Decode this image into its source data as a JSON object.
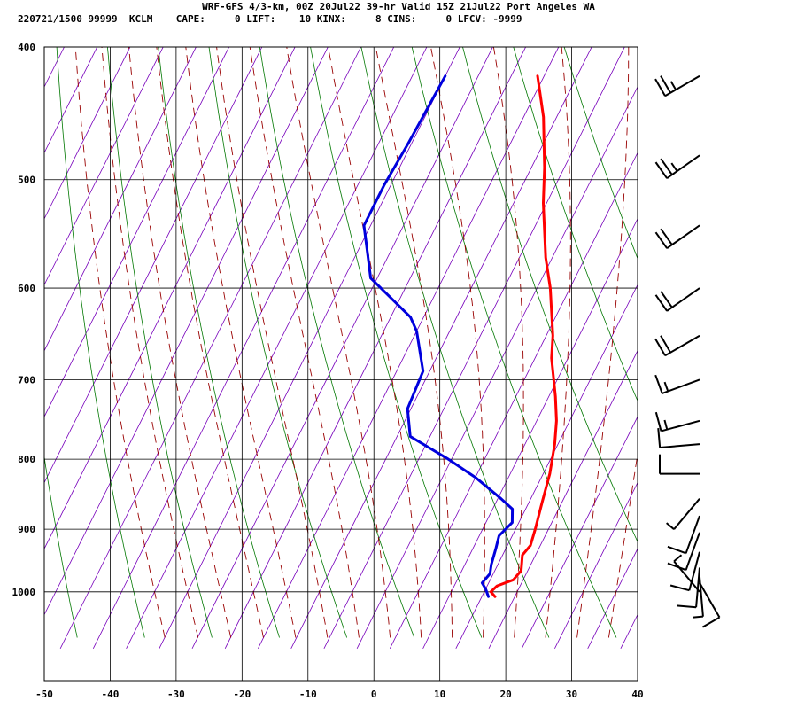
{
  "header": {
    "line1": "WRF-GFS 4/3-km, 00Z 20Jul22 39-hr Valid 15Z 21Jul22 Port Angeles WA",
    "line2": "220721/1500 99999  KCLM    CAPE:     0 LIFT:    10 KINX:     8 CINS:     0 LFCV: -9999"
  },
  "chart_data": {
    "type": "line",
    "title": "WRF-GFS 4/3-km, 00Z 20Jul22 39-hr Valid 15Z 21Jul22 Port Angeles WA",
    "xlabel": "",
    "ylabel": "",
    "x_ticks": [
      -50,
      -40,
      -30,
      -20,
      -10,
      0,
      10,
      20,
      30,
      40
    ],
    "y_ticks": [
      400,
      500,
      600,
      700,
      800,
      900,
      1000
    ],
    "xlim": [
      -50,
      40
    ],
    "ylim": [
      1040,
      400
    ],
    "y_scale": "log-pressure",
    "grid": true,
    "series": [
      {
        "role": "temperature",
        "color": "#ff0000",
        "points": [
          [
            12,
            1008
          ],
          [
            11,
            1000
          ],
          [
            11.5,
            990
          ],
          [
            13.5,
            980
          ],
          [
            14,
            965
          ],
          [
            13,
            940
          ],
          [
            13.5,
            925
          ],
          [
            13,
            900
          ],
          [
            12,
            860
          ],
          [
            11,
            820
          ],
          [
            9.5,
            780
          ],
          [
            8,
            750
          ],
          [
            6,
            720
          ],
          [
            2.5,
            675
          ],
          [
            1,
            650
          ],
          [
            -3,
            600
          ],
          [
            -6,
            570
          ],
          [
            -10.5,
            520
          ],
          [
            -13,
            490
          ],
          [
            -17,
            450
          ],
          [
            -21,
            420
          ]
        ]
      },
      {
        "role": "dewpoint",
        "color": "#0000dd",
        "points": [
          [
            11,
            1008
          ],
          [
            10,
            995
          ],
          [
            9,
            985
          ],
          [
            9.5,
            970
          ],
          [
            9,
            955
          ],
          [
            8.5,
            930
          ],
          [
            8,
            910
          ],
          [
            9,
            890
          ],
          [
            8,
            870
          ],
          [
            5.5,
            855
          ],
          [
            0,
            825
          ],
          [
            -5.5,
            800
          ],
          [
            -13,
            770
          ],
          [
            -15.5,
            735
          ],
          [
            -16,
            690
          ],
          [
            -20,
            645
          ],
          [
            -22,
            630
          ],
          [
            -31,
            590
          ],
          [
            -36,
            540
          ],
          [
            -36,
            505
          ],
          [
            -35.5,
            470
          ],
          [
            -35,
            420
          ]
        ]
      }
    ],
    "dry_adiabats_K": [
      220,
      230,
      240,
      250,
      260,
      270,
      280,
      290,
      300,
      310,
      320,
      330
    ],
    "moist_adiabats_C": [
      -40,
      -35,
      -30,
      -25,
      -20,
      -15,
      -10,
      -5,
      0,
      5,
      10,
      15,
      20,
      25,
      30
    ],
    "mixing_ratio_gkg": [
      0.4,
      1,
      2,
      3,
      5,
      8,
      12,
      16,
      20
    ],
    "wind_barbs": [
      {
        "p": 420,
        "dir": 240,
        "kt": 25
      },
      {
        "p": 480,
        "dir": 235,
        "kt": 25
      },
      {
        "p": 540,
        "dir": 235,
        "kt": 20
      },
      {
        "p": 600,
        "dir": 235,
        "kt": 20
      },
      {
        "p": 650,
        "dir": 240,
        "kt": 20
      },
      {
        "p": 700,
        "dir": 250,
        "kt": 15
      },
      {
        "p": 750,
        "dir": 255,
        "kt": 15
      },
      {
        "p": 780,
        "dir": 265,
        "kt": 10
      },
      {
        "p": 820,
        "dir": 270,
        "kt": 10
      },
      {
        "p": 855,
        "dir": 220,
        "kt": 5
      },
      {
        "p": 880,
        "dir": 200,
        "kt": 10
      },
      {
        "p": 905,
        "dir": 200,
        "kt": 10
      },
      {
        "p": 935,
        "dir": 195,
        "kt": 10
      },
      {
        "p": 960,
        "dir": 185,
        "kt": 10
      },
      {
        "p": 975,
        "dir": 175,
        "kt": 5
      },
      {
        "p": 985,
        "dir": 150,
        "kt": 10
      },
      {
        "p": 1000,
        "dir": 320,
        "kt": 5
      }
    ],
    "colors": {
      "isotherm_skewed": "#7700bb",
      "dry_adiabat": "#007700",
      "moist_adiabat": "#990000",
      "grid": "#000000"
    }
  }
}
